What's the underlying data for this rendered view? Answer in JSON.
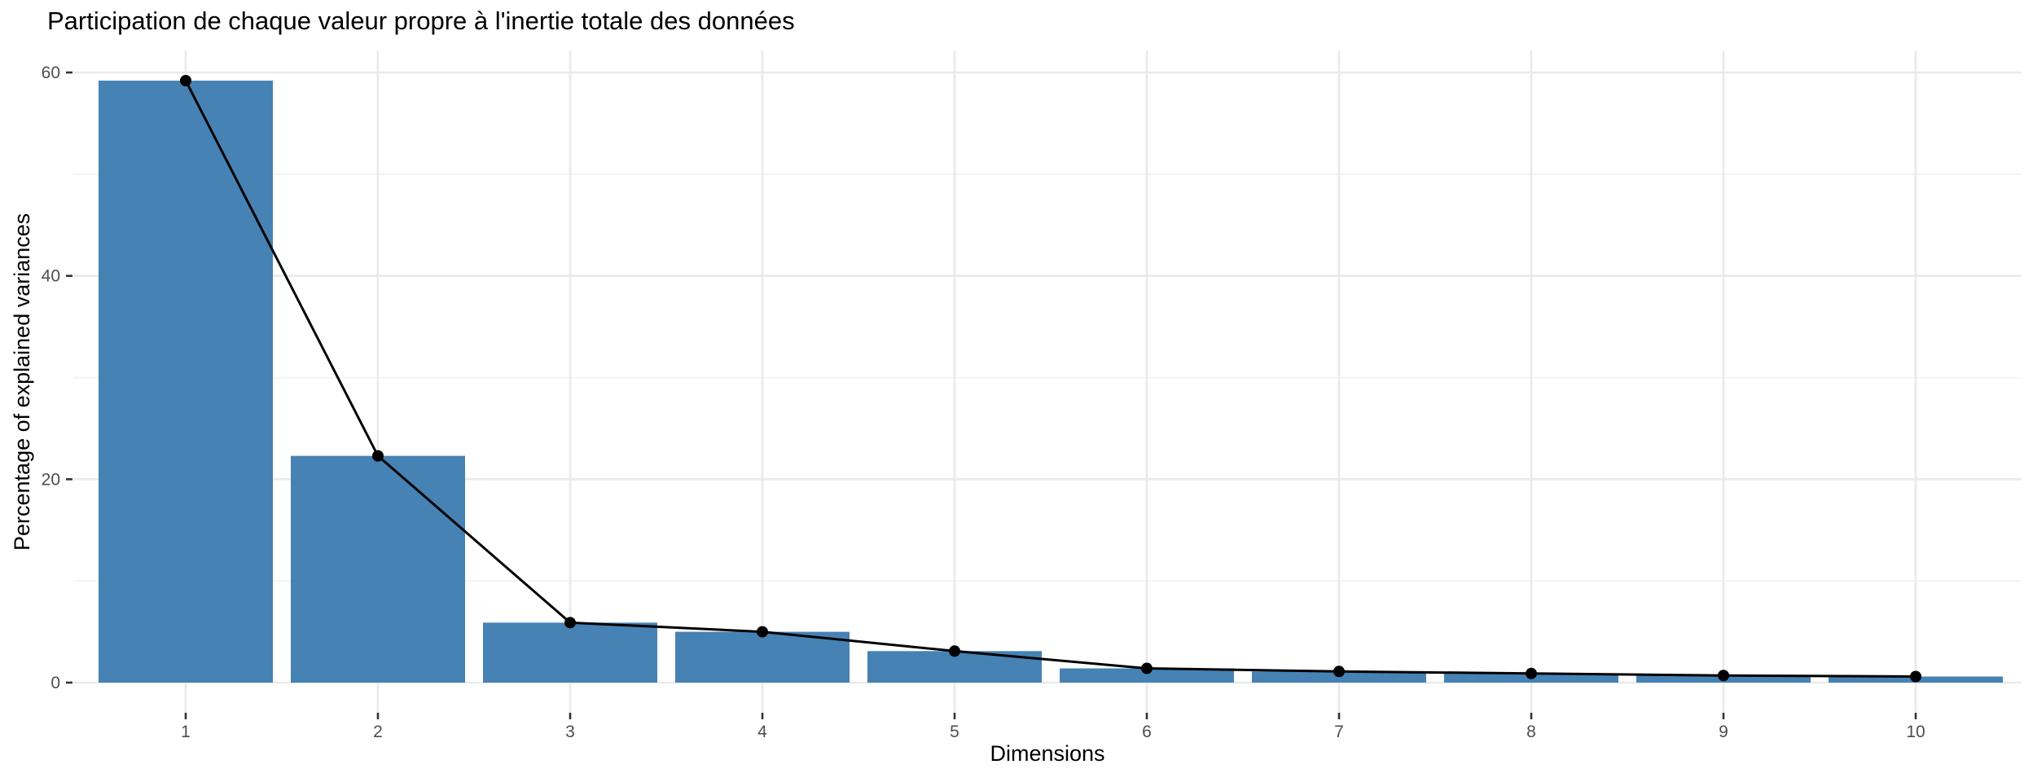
{
  "chart_data": {
    "type": "bar-line",
    "title": "Participation de chaque valeur propre à l'inertie totale des données",
    "xlabel": "Dimensions",
    "ylabel": "Percentage of explained variances",
    "categories": [
      "1",
      "2",
      "3",
      "4",
      "5",
      "6",
      "7",
      "8",
      "9",
      "10"
    ],
    "series": [
      {
        "name": "percentage-of-explained-variance-bars",
        "values": [
          59.2,
          22.3,
          5.9,
          5.0,
          3.1,
          1.4,
          1.1,
          0.9,
          0.7,
          0.6
        ]
      },
      {
        "name": "percentage-of-explained-variance-line",
        "values": [
          59.2,
          22.3,
          5.9,
          5.0,
          3.1,
          1.4,
          1.1,
          0.9,
          0.7,
          0.6
        ]
      }
    ],
    "y_major_ticks": [
      0,
      20,
      40,
      60
    ],
    "y_minor_gridlines": [
      10,
      30,
      50
    ],
    "ylim": [
      -3,
      62.3
    ],
    "grid": true,
    "legend_position": "none",
    "colors": {
      "bar_fill": "#4682B4",
      "line": "#000000",
      "point": "#000000",
      "grid_major": "#EAEAEA",
      "grid_minor": "#F1F1F1",
      "tick_mark": "#333333",
      "tick_label": "#4D4D4D",
      "title_text": "#000000",
      "background": "#FFFFFF"
    }
  }
}
